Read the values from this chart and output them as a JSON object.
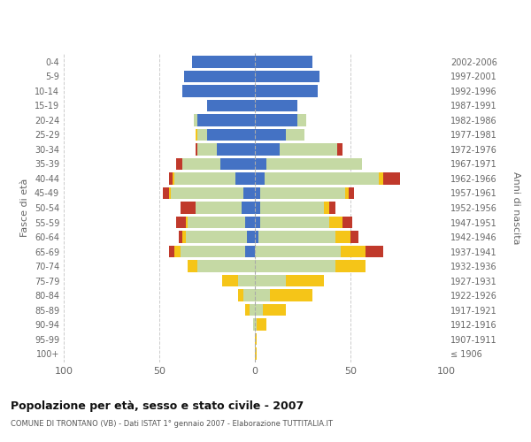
{
  "age_groups": [
    "100+",
    "95-99",
    "90-94",
    "85-89",
    "80-84",
    "75-79",
    "70-74",
    "65-69",
    "60-64",
    "55-59",
    "50-54",
    "45-49",
    "40-44",
    "35-39",
    "30-34",
    "25-29",
    "20-24",
    "15-19",
    "10-14",
    "5-9",
    "0-4"
  ],
  "birth_years": [
    "≤ 1906",
    "1907-1911",
    "1912-1916",
    "1917-1921",
    "1922-1926",
    "1927-1931",
    "1932-1936",
    "1937-1941",
    "1942-1946",
    "1947-1951",
    "1952-1956",
    "1957-1961",
    "1962-1966",
    "1967-1971",
    "1972-1976",
    "1977-1981",
    "1982-1986",
    "1987-1991",
    "1992-1996",
    "1997-2001",
    "2002-2006"
  ],
  "male_celibe": [
    0,
    0,
    0,
    0,
    0,
    0,
    0,
    5,
    4,
    5,
    7,
    6,
    10,
    18,
    20,
    25,
    30,
    25,
    38,
    37,
    33
  ],
  "male_coniugato": [
    0,
    0,
    1,
    3,
    6,
    9,
    30,
    34,
    32,
    30,
    24,
    38,
    32,
    20,
    10,
    5,
    2,
    0,
    0,
    0,
    0
  ],
  "male_vedovo": [
    0,
    0,
    0,
    2,
    3,
    8,
    5,
    3,
    2,
    1,
    0,
    1,
    1,
    0,
    0,
    1,
    0,
    0,
    0,
    0,
    0
  ],
  "male_divorziato": [
    0,
    0,
    0,
    0,
    0,
    0,
    0,
    3,
    2,
    5,
    8,
    3,
    2,
    3,
    1,
    0,
    0,
    0,
    0,
    0,
    0
  ],
  "female_nubile": [
    0,
    0,
    0,
    0,
    0,
    0,
    0,
    0,
    2,
    3,
    3,
    3,
    5,
    6,
    13,
    16,
    22,
    22,
    33,
    34,
    30
  ],
  "female_coniugata": [
    0,
    0,
    1,
    4,
    8,
    16,
    42,
    45,
    40,
    36,
    33,
    44,
    60,
    50,
    30,
    10,
    5,
    0,
    0,
    0,
    0
  ],
  "female_vedova": [
    1,
    1,
    5,
    12,
    22,
    20,
    16,
    13,
    8,
    7,
    3,
    2,
    2,
    0,
    0,
    0,
    0,
    0,
    0,
    0,
    0
  ],
  "female_divorziata": [
    0,
    0,
    0,
    0,
    0,
    0,
    0,
    9,
    4,
    5,
    3,
    3,
    9,
    0,
    3,
    0,
    0,
    0,
    0,
    0,
    0
  ],
  "color_celibe": "#4472c4",
  "color_coniugato": "#c5d9a4",
  "color_vedovo": "#f5c518",
  "color_divorziato": "#c0392b",
  "title": "Popolazione per età, sesso e stato civile - 2007",
  "subtitle": "COMUNE DI TRONTANO (VB) - Dati ISTAT 1° gennaio 2007 - Elaborazione TUTTITALIA.IT",
  "ylabel_left": "Fasce di età",
  "ylabel_right": "Anni di nascita",
  "xlim": 100,
  "bg_color": "#ffffff",
  "grid_color": "#cccccc"
}
